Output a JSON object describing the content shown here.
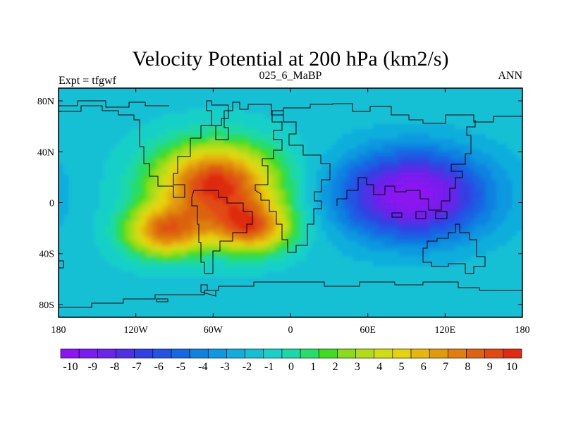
{
  "chart_data": {
    "type": "heatmap",
    "title": "Velocity Potential at 200 hPa (km2/s)",
    "subtitle_left": "Expt = tfgwf",
    "subtitle_center": "025_6_MaBP",
    "subtitle_right": "ANN",
    "x_range": [
      -180,
      180
    ],
    "y_range": [
      -90,
      90
    ],
    "x_ticks": [
      {
        "value": -180,
        "label": "180"
      },
      {
        "value": -120,
        "label": "120W"
      },
      {
        "value": -60,
        "label": "60W"
      },
      {
        "value": 0,
        "label": "0"
      },
      {
        "value": 60,
        "label": "60E"
      },
      {
        "value": 120,
        "label": "120E"
      },
      {
        "value": 180,
        "label": "180"
      }
    ],
    "y_ticks": [
      {
        "value": 80,
        "label": "80N"
      },
      {
        "value": 40,
        "label": "40N"
      },
      {
        "value": 0,
        "label": "0"
      },
      {
        "value": -40,
        "label": "40S"
      },
      {
        "value": -80,
        "label": "80S"
      }
    ],
    "field_background_value": -1.5,
    "field_centers": [
      {
        "name": "primary maximum (South America)",
        "lon": -58,
        "lat": 15,
        "value": 9.5
      },
      {
        "name": "secondary maximum (southwest)",
        "lon": -97,
        "lat": -23,
        "value": 7
      },
      {
        "name": "secondary maximum (south Atlantic)",
        "lon": -30,
        "lat": -20,
        "value": 7
      },
      {
        "name": "minimum (Asia / Indian Ocean)",
        "lon": 95,
        "lat": 6,
        "value": -10
      }
    ],
    "colorbar": {
      "levels": [
        -10,
        -9,
        -8,
        -7,
        -6,
        -5,
        -4,
        -3,
        -2,
        -1,
        0,
        1,
        2,
        3,
        4,
        5,
        6,
        7,
        8,
        9,
        10
      ],
      "labels": [
        "-10",
        "-9",
        "-8",
        "-7",
        "-6",
        "-5",
        "-4",
        "-3",
        "-2",
        "-1",
        "0",
        "1",
        "2",
        "3",
        "4",
        "5",
        "6",
        "7",
        "8",
        "9",
        "10"
      ],
      "colors": [
        "#8a16f0",
        "#7a1cee",
        "#6a24ea",
        "#5030e6",
        "#3040e2",
        "#2254e4",
        "#1668e2",
        "#0f82e0",
        "#0e98e0",
        "#11aedc",
        "#16c0d4",
        "#19d0c8",
        "#1cd8a8",
        "#28dc6a",
        "#40dc20",
        "#88dc1c",
        "#b0dc18",
        "#d0dc14",
        "#e6d20f",
        "#e6b80d",
        "#e29a0c",
        "#de7f0e",
        "#dc6410",
        "#e24812",
        "#de2a10"
      ]
    }
  }
}
